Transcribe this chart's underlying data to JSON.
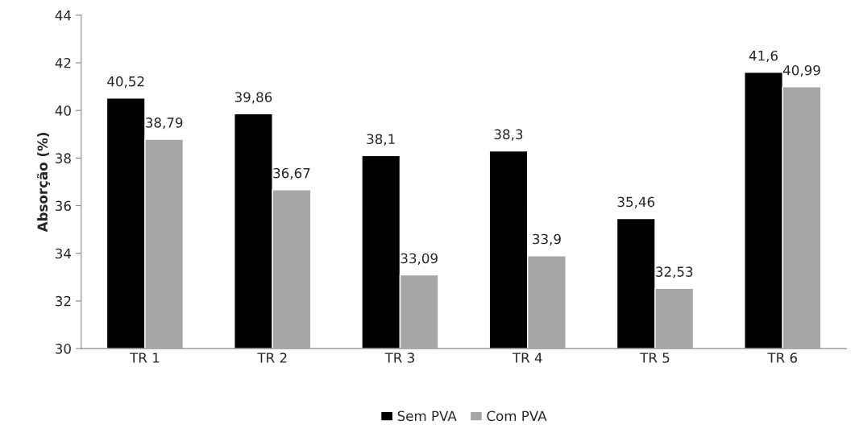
{
  "chart_data": {
    "type": "bar",
    "ylabel": "Absorção (%)",
    "categories": [
      "TR 1",
      "TR 2",
      "TR 3",
      "TR 4",
      "TR 5",
      "TR 6"
    ],
    "series": [
      {
        "name": "Sem PVA",
        "color": "#000000",
        "values": [
          40.52,
          39.86,
          38.1,
          38.3,
          35.46,
          41.6
        ],
        "value_labels": [
          "40,52",
          "39,86",
          "38,1",
          "38,3",
          "35,46",
          "41,6"
        ]
      },
      {
        "name": "Com PVA",
        "color": "#a6a6a6",
        "values": [
          38.79,
          36.67,
          33.09,
          33.9,
          32.53,
          40.99
        ],
        "value_labels": [
          "38,79",
          "36,67",
          "33,09",
          "33,9",
          "32,53",
          "40,99"
        ]
      }
    ],
    "ylim": [
      30,
      44
    ],
    "yticks": [
      30,
      32,
      34,
      36,
      38,
      40,
      42,
      44
    ],
    "grid": false,
    "legend": "bottom"
  }
}
